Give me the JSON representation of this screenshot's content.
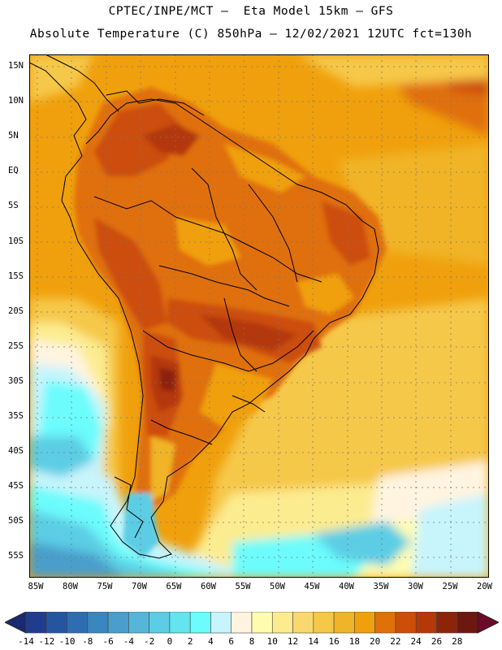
{
  "header": {
    "line1": "CPTEC/INPE/MCT –  Eta Model 15km – GFS",
    "line2": "Absolute Temperature (C) 850hPa – 12/02/2021 12UTC fct=130h"
  },
  "axes": {
    "lat_labels": [
      "15N",
      "10N",
      "5N",
      "EQ",
      "5S",
      "10S",
      "15S",
      "20S",
      "25S",
      "30S",
      "35S",
      "40S",
      "45S",
      "50S",
      "55S"
    ],
    "lon_labels": [
      "85W",
      "80W",
      "75W",
      "70W",
      "65W",
      "60W",
      "55W",
      "50W",
      "45W",
      "40W",
      "35W",
      "30W",
      "25W",
      "20W"
    ]
  },
  "colorbar": {
    "labels": [
      "-14",
      "-12",
      "-10",
      "-8",
      "-6",
      "-4",
      "-2",
      "0",
      "2",
      "4",
      "6",
      "8",
      "10",
      "12",
      "14",
      "16",
      "18",
      "20",
      "22",
      "24",
      "26",
      "28"
    ],
    "colors": [
      "#1f3d8c",
      "#2456a0",
      "#2e6eb0",
      "#3a86be",
      "#4a9ecb",
      "#56b6d8",
      "#5ccde4",
      "#64e4ee",
      "#6cfcfc",
      "#c8f4fc",
      "#fff4e0",
      "#fffcb0",
      "#fcec90",
      "#fad870",
      "#f6c848",
      "#f0b428",
      "#f0a00c",
      "#e07008",
      "#cc4e08",
      "#b43808",
      "#8c2408",
      "#6c1810"
    ],
    "low_arrow_color": "#1a2a70",
    "high_arrow_color": "#6c0a2a"
  },
  "map_fill": {
    "ocean_tropical": "#f0a00c",
    "ocean_south": "#fce080",
    "cold_water": "#6cfcfc",
    "land_warm": "#e0780c",
    "hot_core": "#b44010"
  }
}
